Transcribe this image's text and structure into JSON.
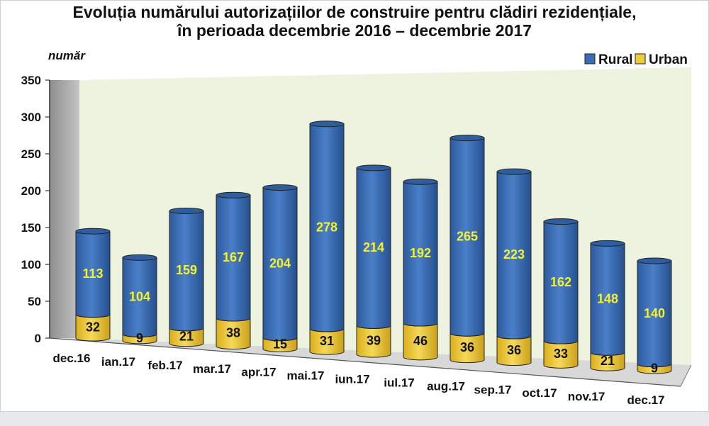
{
  "chart_data": {
    "type": "bar",
    "stacked": true,
    "title_line1": "Evoluția numărului autorizațiilor de construire pentru clădiri rezidențiale,",
    "title_line2": "în perioada decembrie 2016 – decembrie 2017",
    "ylabel": "număr",
    "ylim": [
      0,
      350
    ],
    "yticks": [
      0,
      50,
      100,
      150,
      200,
      250,
      300,
      350
    ],
    "grid": false,
    "legend_position": "top-right",
    "categories": [
      "dec.16",
      "ian.17",
      "feb.17",
      "mar.17",
      "apr.17",
      "mai.17",
      "iun.17",
      "iul.17",
      "aug.17",
      "sep.17",
      "oct.17",
      "nov.17",
      "dec.17"
    ],
    "series": [
      {
        "name": "Urban",
        "values": [
          32,
          9,
          21,
          38,
          15,
          31,
          39,
          46,
          36,
          36,
          33,
          21,
          9
        ],
        "color": "#f0cc3c"
      },
      {
        "name": "Rural",
        "values": [
          113,
          104,
          159,
          167,
          204,
          278,
          214,
          192,
          265,
          223,
          162,
          148,
          140
        ],
        "color": "#3a6db5"
      }
    ],
    "colors": {
      "plot_background": "#eef3df",
      "side_wall": "#a8a8a8",
      "floor": "#d8d8d8"
    }
  }
}
